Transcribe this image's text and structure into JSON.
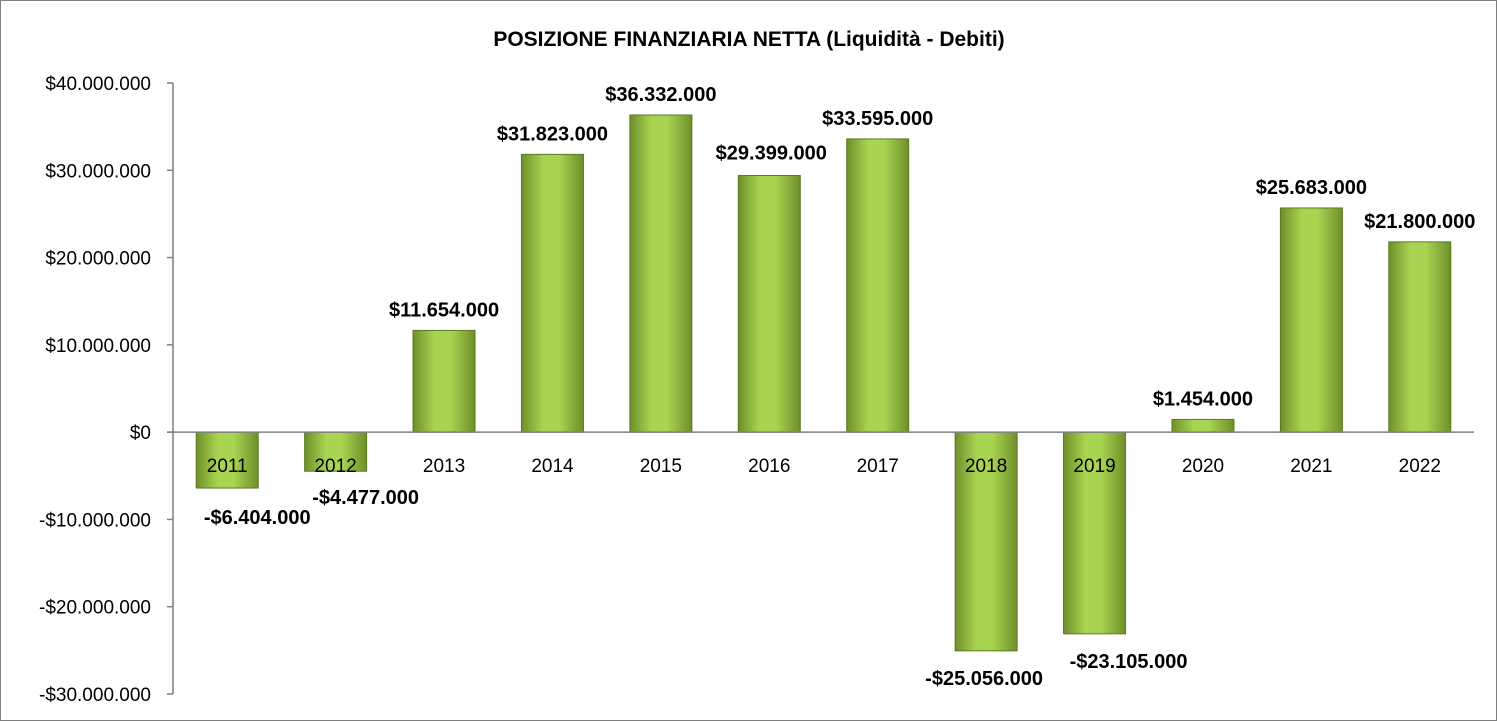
{
  "chart_data": {
    "type": "bar",
    "title": "POSIZIONE FINANZIARIA NETTA (Liquidità - Debiti)",
    "xlabel": "",
    "ylabel": "",
    "ylim": [
      -30000000,
      40000000
    ],
    "ytick_step": 10000000,
    "yticks": [
      {
        "value": 40000000,
        "label": "$40.000.000"
      },
      {
        "value": 30000000,
        "label": "$30.000.000"
      },
      {
        "value": 20000000,
        "label": "$20.000.000"
      },
      {
        "value": 10000000,
        "label": "$10.000.000"
      },
      {
        "value": 0,
        "label": "$0"
      },
      {
        "value": -10000000,
        "label": "-$10.000.000"
      },
      {
        "value": -20000000,
        "label": "-$20.000.000"
      },
      {
        "value": -30000000,
        "label": "-$30.000.000"
      }
    ],
    "categories": [
      "2011",
      "2012",
      "2013",
      "2014",
      "2015",
      "2016",
      "2017",
      "2018",
      "2019",
      "2020",
      "2021",
      "2022"
    ],
    "values": [
      -6404000,
      -4477000,
      11654000,
      31823000,
      36332000,
      29399000,
      33595000,
      -25056000,
      -23105000,
      1454000,
      25683000,
      21800000
    ],
    "data_labels": [
      "-$6.404.000",
      "-$4.477.000",
      "$11.654.000",
      "$31.823.000",
      "$36.332.000",
      "$29.399.000",
      "$33.595.000",
      "-$25.056.000",
      "-$23.105.000",
      "$1.454.000",
      "$25.683.000",
      "$21.800.000"
    ],
    "grid": false,
    "legend": "none",
    "colors": {
      "bar_light": "#a9d451",
      "bar_dark": "#6f8f2a",
      "bar_edge": "#5a7a20",
      "axis": "#7f7f7f"
    }
  }
}
